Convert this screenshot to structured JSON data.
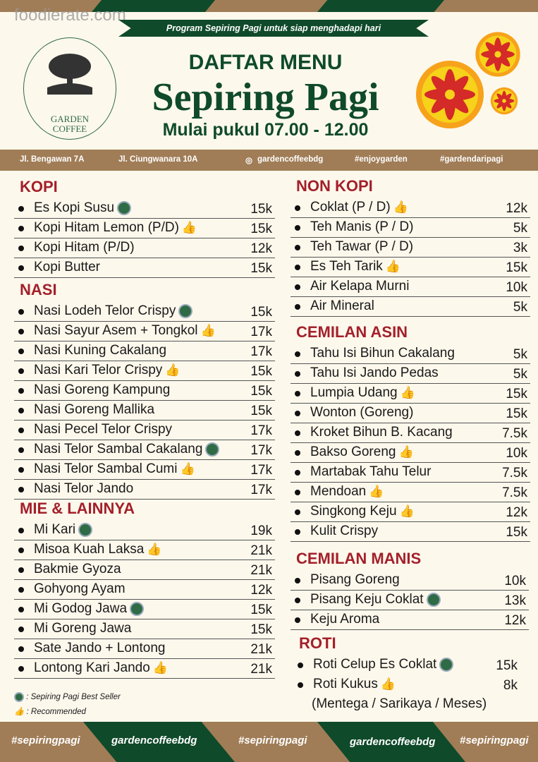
{
  "watermark": "foodierate.com",
  "ribbon": "Program Sepiring Pagi untuk siap menghadapi hari",
  "logo": {
    "line1": "GARDEN",
    "line2": "COFFEE"
  },
  "header": {
    "title_small": "DAFTAR MENU",
    "title_big": "Sepiring Pagi",
    "hours": "Mulai pukul 07.00 - 12.00"
  },
  "info": {
    "addr1": "Jl. Bengawan 7A",
    "addr2": "Jl. Ciungwanara 10A",
    "instagram": "gardencoffeebdg",
    "tag1": "#enjoygarden",
    "tag2": "#gardendaripagi"
  },
  "colors": {
    "green": "#0f4a2a",
    "brown": "#a07d57",
    "red": "#a3202a",
    "cream": "#fdf8ec"
  },
  "sections": [
    {
      "title": "KOPI",
      "items": [
        [
          "Es Kopi Susu",
          "seller",
          "15k"
        ],
        [
          "Kopi Hitam Lemon (P/D)",
          "thumb",
          "15k"
        ],
        [
          "Kopi Hitam (P/D)",
          "",
          "12k"
        ],
        [
          "Kopi Butter",
          "",
          "15k"
        ]
      ]
    },
    {
      "title": "NASI",
      "items": [
        [
          "Nasi Lodeh Telor Crispy",
          "seller",
          "15k"
        ],
        [
          "Nasi Sayur Asem + Tongkol",
          "thumb",
          "17k"
        ],
        [
          "Nasi Kuning Cakalang",
          "",
          "17k"
        ],
        [
          "Nasi Kari Telor Crispy",
          "thumb",
          "15k"
        ],
        [
          "Nasi Goreng Kampung",
          "",
          "15k"
        ],
        [
          "Nasi Goreng Mallika",
          "",
          "15k"
        ],
        [
          "Nasi Pecel Telor Crispy",
          "",
          "17k"
        ],
        [
          "Nasi Telor Sambal Cakalang",
          "seller",
          "17k"
        ],
        [
          "Nasi Telor Sambal Cumi",
          "thumb",
          "17k"
        ],
        [
          "Nasi Telor Jando",
          "",
          "17k"
        ]
      ]
    },
    {
      "title": "MIE & LAINNYA",
      "items": [
        [
          "Mi Kari",
          "seller",
          "19k"
        ],
        [
          "Misoa Kuah Laksa",
          "thumb",
          "21k"
        ],
        [
          "Bakmie Gyoza",
          "",
          "21k"
        ],
        [
          "Gohyong Ayam",
          "",
          "12k"
        ],
        [
          "Mi Godog Jawa",
          "seller",
          "15k"
        ],
        [
          "Mi Goreng Jawa",
          "",
          "15k"
        ],
        [
          "Sate Jando + Lontong",
          "",
          "21k"
        ],
        [
          "Lontong Kari Jando",
          "thumb",
          "21k"
        ]
      ]
    },
    {
      "title": "NON KOPI",
      "items": [
        [
          "Coklat (P / D)",
          "thumb",
          "12k"
        ],
        [
          "Teh Manis (P / D)",
          "",
          "5k"
        ],
        [
          "Teh Tawar (P / D)",
          "",
          "3k"
        ],
        [
          "Es Teh Tarik",
          "thumb",
          "15k"
        ],
        [
          "Air Kelapa Murni",
          "",
          "10k"
        ],
        [
          "Air Mineral",
          "",
          "5k"
        ]
      ]
    },
    {
      "title": "CEMILAN ASIN",
      "items": [
        [
          "Tahu Isi Bihun Cakalang",
          "",
          "5k"
        ],
        [
          "Tahu Isi Jando Pedas",
          "",
          "5k"
        ],
        [
          "Lumpia Udang",
          "thumb",
          "15k"
        ],
        [
          "Wonton (Goreng)",
          "",
          "15k"
        ],
        [
          "Kroket Bihun B. Kacang",
          "",
          "7.5k"
        ],
        [
          "Bakso Goreng",
          "thumb",
          "10k"
        ],
        [
          "Martabak Tahu Telur",
          "",
          "7.5k"
        ],
        [
          "Mendoan",
          "thumb",
          "7.5k"
        ],
        [
          "Singkong Keju",
          "thumb",
          "12k"
        ],
        [
          "Kulit Crispy",
          "",
          "15k"
        ]
      ]
    },
    {
      "title": "CEMILAN MANIS",
      "items": [
        [
          "Pisang Goreng",
          "",
          "10k"
        ],
        [
          "Pisang Keju Coklat",
          "seller",
          "13k"
        ],
        [
          "Keju Aroma",
          "",
          "12k"
        ]
      ]
    },
    {
      "title": "ROTI",
      "items": [
        [
          "Roti Celup Es Coklat",
          "seller",
          "15k"
        ],
        [
          "Roti Kukus",
          "thumb",
          "8k"
        ]
      ],
      "note": "(Mentega / Sarikaya / Meses)"
    }
  ],
  "legend": {
    "seller": ": Sepiring Pagi Best Seller",
    "thumb": ": Recommended"
  },
  "footer": [
    "#sepiringpagi",
    "gardencoffeebdg",
    "#sepiringpagi",
    "gardencoffeebdg",
    "#sepiringpagi"
  ]
}
